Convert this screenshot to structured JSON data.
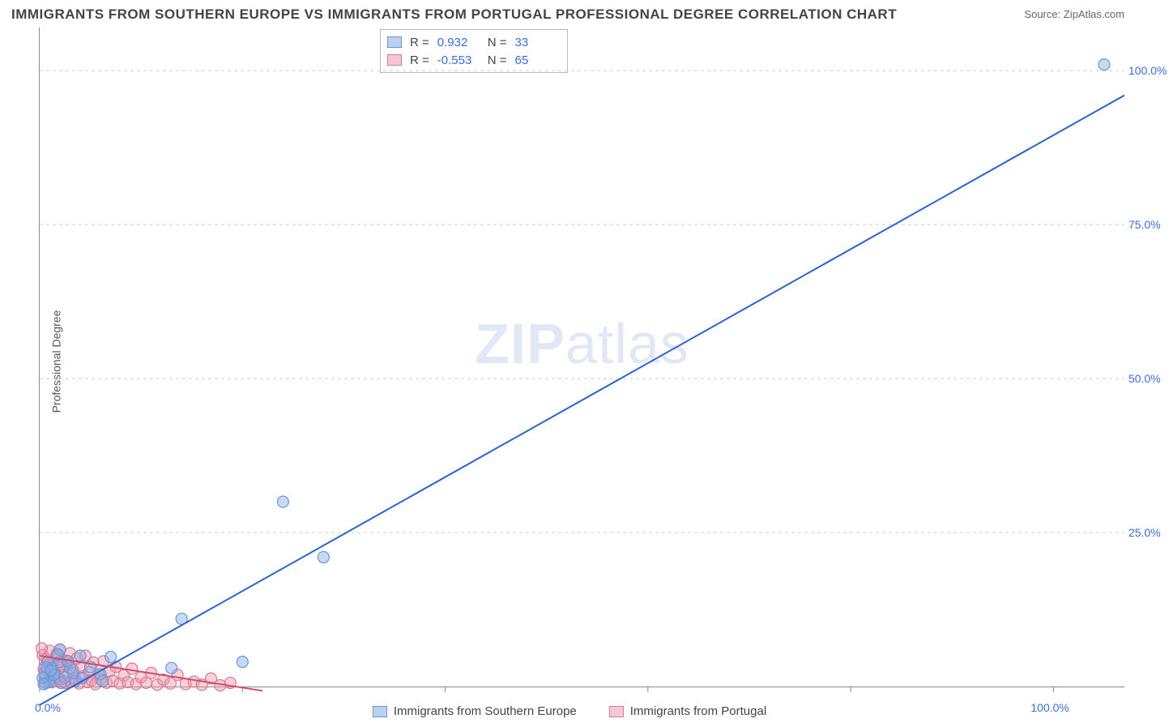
{
  "title": "IMMIGRANTS FROM SOUTHERN EUROPE VS IMMIGRANTS FROM PORTUGAL PROFESSIONAL DEGREE CORRELATION CHART",
  "source_label": "Source:",
  "source_site": "ZipAtlas.com",
  "ylabel": "Professional Degree",
  "watermark_bold": "ZIP",
  "watermark_rest": "atlas",
  "chart": {
    "type": "scatter-with-regression",
    "xlim": [
      0,
      107
    ],
    "ylim": [
      0,
      107
    ],
    "xticks": [
      0,
      20,
      40,
      60,
      80,
      100
    ],
    "yticks": [
      25,
      50,
      75,
      100
    ],
    "xlabels_shown": {
      "0": "0.0%",
      "100": "100.0%"
    },
    "ylabels_shown": {
      "25": "25.0%",
      "50": "50.0%",
      "75": "75.0%",
      "100": "100.0%"
    },
    "grid_color": "#cccccc",
    "axis_color": "#888888",
    "background_color": "#ffffff",
    "tick_label_color": "#3a6fd8",
    "series": [
      {
        "name": "Immigrants from Southern Europe",
        "color_fill": "rgba(130,170,230,0.45)",
        "color_stroke": "#6a95d6",
        "swatch_fill": "#bcd1f0",
        "swatch_border": "#6a95d6",
        "R": "0.932",
        "N": "33",
        "regression": {
          "x1": 0,
          "y1": -3,
          "x2": 107,
          "y2": 96,
          "color": "#2a62d4",
          "width": 2
        },
        "points": [
          [
            105,
            101
          ],
          [
            28,
            21
          ],
          [
            24,
            30
          ],
          [
            20,
            4
          ],
          [
            14,
            11
          ],
          [
            6,
            2
          ],
          [
            4,
            5
          ],
          [
            3,
            3
          ],
          [
            2,
            6
          ],
          [
            2,
            4
          ],
          [
            1.5,
            2
          ],
          [
            1,
            1
          ],
          [
            0.8,
            4
          ],
          [
            0.6,
            0.6
          ],
          [
            2.5,
            1.5
          ],
          [
            1.2,
            3
          ],
          [
            3.5,
            0.9
          ],
          [
            1.8,
            5.2
          ],
          [
            0.5,
            2.2
          ],
          [
            4.2,
            1.4
          ],
          [
            5,
            3.2
          ],
          [
            0.9,
            0.7
          ],
          [
            1.4,
            1.9
          ],
          [
            2.1,
            0.6
          ],
          [
            0.3,
            1.4
          ],
          [
            13,
            3.0
          ],
          [
            3.3,
            2.2
          ],
          [
            0.7,
            3.1
          ],
          [
            6.2,
            0.9
          ],
          [
            2.8,
            4.1
          ],
          [
            1.1,
            2.6
          ],
          [
            0.4,
            0.4
          ],
          [
            7,
            4.8
          ]
        ]
      },
      {
        "name": "Immigrants from Portugal",
        "color_fill": "rgba(240,150,170,0.45)",
        "color_stroke": "#d87a95",
        "swatch_fill": "#f5c6d3",
        "swatch_border": "#d87a95",
        "R": "-0.553",
        "N": "65",
        "regression": {
          "x1": 0,
          "y1": 5.0,
          "x2": 22,
          "y2": -0.7,
          "color": "#d44a6a",
          "width": 2
        },
        "points": [
          [
            0.3,
            5.1
          ],
          [
            0.5,
            3.2
          ],
          [
            0.7,
            4.4
          ],
          [
            0.9,
            2.1
          ],
          [
            1.0,
            5.8
          ],
          [
            1.1,
            1.4
          ],
          [
            1.3,
            3.7
          ],
          [
            1.5,
            0.9
          ],
          [
            1.6,
            4.9
          ],
          [
            1.8,
            2.6
          ],
          [
            2.0,
            6.0
          ],
          [
            2.1,
            1.1
          ],
          [
            2.3,
            3.3
          ],
          [
            2.5,
            0.6
          ],
          [
            2.6,
            4.2
          ],
          [
            2.8,
            1.9
          ],
          [
            3.0,
            5.4
          ],
          [
            3.1,
            0.8
          ],
          [
            3.3,
            2.7
          ],
          [
            3.5,
            1.3
          ],
          [
            3.7,
            4.6
          ],
          [
            3.9,
            0.5
          ],
          [
            4.1,
            3.0
          ],
          [
            4.3,
            1.7
          ],
          [
            4.5,
            5.0
          ],
          [
            4.7,
            0.7
          ],
          [
            4.9,
            2.3
          ],
          [
            5.1,
            1.0
          ],
          [
            5.3,
            3.9
          ],
          [
            5.5,
            0.4
          ],
          [
            5.8,
            2.0
          ],
          [
            6.0,
            1.2
          ],
          [
            6.3,
            4.1
          ],
          [
            6.6,
            0.6
          ],
          [
            6.9,
            2.5
          ],
          [
            7.2,
            0.9
          ],
          [
            7.5,
            3.2
          ],
          [
            7.9,
            0.5
          ],
          [
            8.3,
            1.8
          ],
          [
            8.7,
            0.7
          ],
          [
            9.1,
            2.9
          ],
          [
            9.5,
            0.4
          ],
          [
            10.0,
            1.5
          ],
          [
            10.5,
            0.6
          ],
          [
            11.0,
            2.2
          ],
          [
            11.6,
            0.3
          ],
          [
            12.2,
            1.1
          ],
          [
            12.9,
            0.5
          ],
          [
            13.6,
            1.9
          ],
          [
            14.4,
            0.4
          ],
          [
            15.2,
            0.8
          ],
          [
            16.0,
            0.3
          ],
          [
            16.9,
            1.3
          ],
          [
            17.8,
            0.2
          ],
          [
            18.8,
            0.6
          ],
          [
            0.2,
            6.2
          ],
          [
            0.4,
            2.8
          ],
          [
            0.6,
            1.6
          ],
          [
            0.8,
            4.0
          ],
          [
            1.2,
            0.7
          ],
          [
            1.4,
            2.4
          ],
          [
            1.7,
            5.3
          ],
          [
            1.9,
            1.2
          ],
          [
            2.2,
            3.6
          ],
          [
            2.4,
            0.8
          ]
        ]
      }
    ],
    "marker_radius": 7,
    "marker_stroke_width": 1.2
  },
  "stats_labels": {
    "R": "R =",
    "N": "N ="
  },
  "legend_bottom": [
    "Immigrants from Southern Europe",
    "Immigrants from Portugal"
  ]
}
